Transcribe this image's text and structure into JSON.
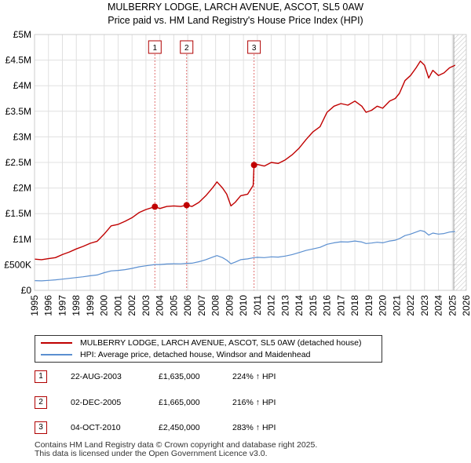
{
  "title": "MULBERRY LODGE, LARCH AVENUE, ASCOT, SL5 0AW",
  "subtitle": "Price paid vs. HM Land Registry's House Price Index (HPI)",
  "colors": {
    "property": "#c00000",
    "hpi": "#5b8fd0",
    "vline": "#e07070",
    "grid": "#e0e0e0"
  },
  "chart_data": {
    "type": "line",
    "xlim": [
      1995,
      2026
    ],
    "ylim": [
      0,
      5000000
    ],
    "y_ticks": [
      0,
      500000,
      1000000,
      1500000,
      2000000,
      2500000,
      3000000,
      3500000,
      4000000,
      4500000,
      5000000
    ],
    "y_tick_labels": [
      "£0",
      "£500K",
      "£1M",
      "£1.5M",
      "£2M",
      "£2.5M",
      "£3M",
      "£3.5M",
      "£4M",
      "£4.5M",
      "£5M"
    ],
    "x_ticks": [
      1995,
      1996,
      1997,
      1998,
      1999,
      2000,
      2001,
      2002,
      2003,
      2004,
      2005,
      2006,
      2007,
      2008,
      2009,
      2010,
      2011,
      2012,
      2013,
      2014,
      2015,
      2016,
      2017,
      2018,
      2019,
      2020,
      2021,
      2022,
      2023,
      2024,
      2025,
      2026
    ],
    "x_tick_labels": [
      "1995",
      "1996",
      "1997",
      "1998",
      "1999",
      "2000",
      "2001",
      "2002",
      "2003",
      "2004",
      "2005",
      "2006",
      "2007",
      "2008",
      "2009",
      "2010",
      "2011",
      "2012",
      "2013",
      "2014",
      "2015",
      "2016",
      "2017",
      "2018",
      "2019",
      "2020",
      "2021",
      "2022",
      "2023",
      "2024",
      "2025",
      "2026"
    ],
    "hatch_from": 2025.1,
    "series": [
      {
        "name": "MULBERRY LODGE, LARCH AVENUE, ASCOT, SL5 0AW (detached house)",
        "color": "#c00000",
        "points": [
          [
            1995.0,
            610000
          ],
          [
            1995.5,
            600000
          ],
          [
            1996.0,
            620000
          ],
          [
            1996.5,
            640000
          ],
          [
            1997.0,
            700000
          ],
          [
            1997.5,
            750000
          ],
          [
            1998.0,
            810000
          ],
          [
            1998.5,
            860000
          ],
          [
            1999.0,
            920000
          ],
          [
            1999.5,
            960000
          ],
          [
            2000.0,
            1100000
          ],
          [
            2000.5,
            1260000
          ],
          [
            2001.0,
            1290000
          ],
          [
            2001.5,
            1350000
          ],
          [
            2002.0,
            1420000
          ],
          [
            2002.5,
            1520000
          ],
          [
            2003.0,
            1580000
          ],
          [
            2003.64,
            1635000
          ],
          [
            2004.0,
            1600000
          ],
          [
            2004.5,
            1640000
          ],
          [
            2005.0,
            1650000
          ],
          [
            2005.5,
            1640000
          ],
          [
            2005.92,
            1665000
          ],
          [
            2006.3,
            1640000
          ],
          [
            2006.8,
            1720000
          ],
          [
            2007.3,
            1850000
          ],
          [
            2007.8,
            2010000
          ],
          [
            2008.1,
            2120000
          ],
          [
            2008.5,
            2000000
          ],
          [
            2008.8,
            1880000
          ],
          [
            2009.1,
            1650000
          ],
          [
            2009.4,
            1720000
          ],
          [
            2009.8,
            1850000
          ],
          [
            2010.3,
            1880000
          ],
          [
            2010.7,
            2050000
          ],
          [
            2010.76,
            2450000
          ],
          [
            2011.0,
            2460000
          ],
          [
            2011.5,
            2430000
          ],
          [
            2012.0,
            2500000
          ],
          [
            2012.5,
            2480000
          ],
          [
            2013.0,
            2550000
          ],
          [
            2013.5,
            2650000
          ],
          [
            2014.0,
            2780000
          ],
          [
            2014.5,
            2950000
          ],
          [
            2015.0,
            3100000
          ],
          [
            2015.5,
            3200000
          ],
          [
            2016.0,
            3480000
          ],
          [
            2016.5,
            3600000
          ],
          [
            2017.0,
            3650000
          ],
          [
            2017.5,
            3620000
          ],
          [
            2018.0,
            3700000
          ],
          [
            2018.5,
            3600000
          ],
          [
            2018.8,
            3480000
          ],
          [
            2019.2,
            3520000
          ],
          [
            2019.6,
            3600000
          ],
          [
            2020.0,
            3560000
          ],
          [
            2020.5,
            3700000
          ],
          [
            2020.9,
            3750000
          ],
          [
            2021.2,
            3850000
          ],
          [
            2021.6,
            4100000
          ],
          [
            2022.0,
            4200000
          ],
          [
            2022.4,
            4350000
          ],
          [
            2022.7,
            4480000
          ],
          [
            2023.0,
            4400000
          ],
          [
            2023.3,
            4150000
          ],
          [
            2023.6,
            4300000
          ],
          [
            2024.0,
            4200000
          ],
          [
            2024.4,
            4250000
          ],
          [
            2024.8,
            4350000
          ],
          [
            2025.2,
            4400000
          ]
        ]
      },
      {
        "name": "HPI: Average price, detached house, Windsor and Maidenhead",
        "color": "#5b8fd0",
        "points": [
          [
            1995.0,
            190000
          ],
          [
            1995.5,
            185000
          ],
          [
            1996.0,
            195000
          ],
          [
            1996.5,
            205000
          ],
          [
            1997.0,
            220000
          ],
          [
            1997.5,
            235000
          ],
          [
            1998.0,
            250000
          ],
          [
            1998.5,
            265000
          ],
          [
            1999.0,
            285000
          ],
          [
            1999.5,
            300000
          ],
          [
            2000.0,
            345000
          ],
          [
            2000.5,
            380000
          ],
          [
            2001.0,
            390000
          ],
          [
            2001.5,
            405000
          ],
          [
            2002.0,
            430000
          ],
          [
            2002.5,
            460000
          ],
          [
            2003.0,
            480000
          ],
          [
            2003.64,
            505000
          ],
          [
            2004.0,
            505000
          ],
          [
            2004.5,
            515000
          ],
          [
            2005.0,
            520000
          ],
          [
            2005.5,
            518000
          ],
          [
            2005.92,
            527000
          ],
          [
            2006.3,
            530000
          ],
          [
            2006.8,
            560000
          ],
          [
            2007.3,
            600000
          ],
          [
            2007.8,
            650000
          ],
          [
            2008.1,
            680000
          ],
          [
            2008.5,
            640000
          ],
          [
            2008.8,
            590000
          ],
          [
            2009.1,
            520000
          ],
          [
            2009.4,
            550000
          ],
          [
            2009.8,
            600000
          ],
          [
            2010.3,
            615000
          ],
          [
            2010.76,
            640000
          ],
          [
            2011.0,
            645000
          ],
          [
            2011.5,
            640000
          ],
          [
            2012.0,
            655000
          ],
          [
            2012.5,
            650000
          ],
          [
            2013.0,
            670000
          ],
          [
            2013.5,
            700000
          ],
          [
            2014.0,
            740000
          ],
          [
            2014.5,
            780000
          ],
          [
            2015.0,
            810000
          ],
          [
            2015.5,
            840000
          ],
          [
            2016.0,
            900000
          ],
          [
            2016.5,
            930000
          ],
          [
            2017.0,
            950000
          ],
          [
            2017.5,
            945000
          ],
          [
            2018.0,
            965000
          ],
          [
            2018.5,
            945000
          ],
          [
            2018.8,
            915000
          ],
          [
            2019.2,
            925000
          ],
          [
            2019.6,
            940000
          ],
          [
            2020.0,
            930000
          ],
          [
            2020.5,
            965000
          ],
          [
            2020.9,
            980000
          ],
          [
            2021.2,
            1010000
          ],
          [
            2021.6,
            1070000
          ],
          [
            2022.0,
            1100000
          ],
          [
            2022.4,
            1140000
          ],
          [
            2022.7,
            1170000
          ],
          [
            2023.0,
            1150000
          ],
          [
            2023.3,
            1080000
          ],
          [
            2023.6,
            1120000
          ],
          [
            2024.0,
            1100000
          ],
          [
            2024.4,
            1110000
          ],
          [
            2024.8,
            1140000
          ],
          [
            2025.2,
            1150000
          ]
        ]
      }
    ],
    "sales": [
      {
        "label": "1",
        "x": 2003.64,
        "y": 1635000
      },
      {
        "label": "2",
        "x": 2005.92,
        "y": 1665000
      },
      {
        "label": "3",
        "x": 2010.76,
        "y": 2450000
      }
    ]
  },
  "legend": {
    "property_label": "MULBERRY LODGE, LARCH AVENUE, ASCOT, SL5 0AW (detached house)",
    "hpi_label": "HPI: Average price, detached house, Windsor and Maidenhead"
  },
  "sales_table": [
    {
      "num": "1",
      "date": "22-AUG-2003",
      "price": "£1,635,000",
      "hpi": "224% ↑ HPI"
    },
    {
      "num": "2",
      "date": "02-DEC-2005",
      "price": "£1,665,000",
      "hpi": "216% ↑ HPI"
    },
    {
      "num": "3",
      "date": "04-OCT-2010",
      "price": "£2,450,000",
      "hpi": "283% ↑ HPI"
    }
  ],
  "footer": {
    "line1": "Contains HM Land Registry data © Crown copyright and database right 2025.",
    "line2": "This data is licensed under the Open Government Licence v3.0."
  }
}
